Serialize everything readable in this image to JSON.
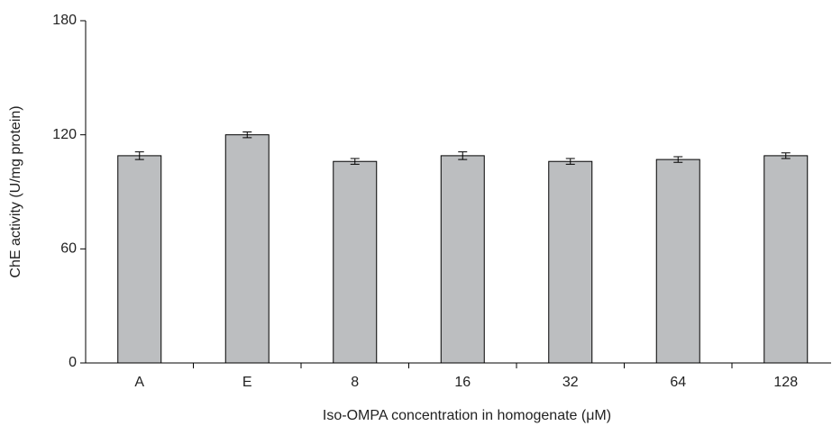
{
  "chart_data": {
    "type": "bar",
    "y_label": "ChE activity (U/mg protein)",
    "x_label": "Iso-OMPA concentration in homogenate (μM)",
    "categories": [
      "A",
      "E",
      "8",
      "16",
      "32",
      "64",
      "128"
    ],
    "values": [
      109,
      120,
      106,
      109,
      106,
      107,
      109
    ],
    "errors": [
      2,
      1.5,
      1.5,
      2,
      1.5,
      1.5,
      1.5
    ],
    "color": "#bcbec0",
    "ylim": [
      0,
      180
    ],
    "yticks": [
      0,
      60,
      120,
      180
    ]
  }
}
